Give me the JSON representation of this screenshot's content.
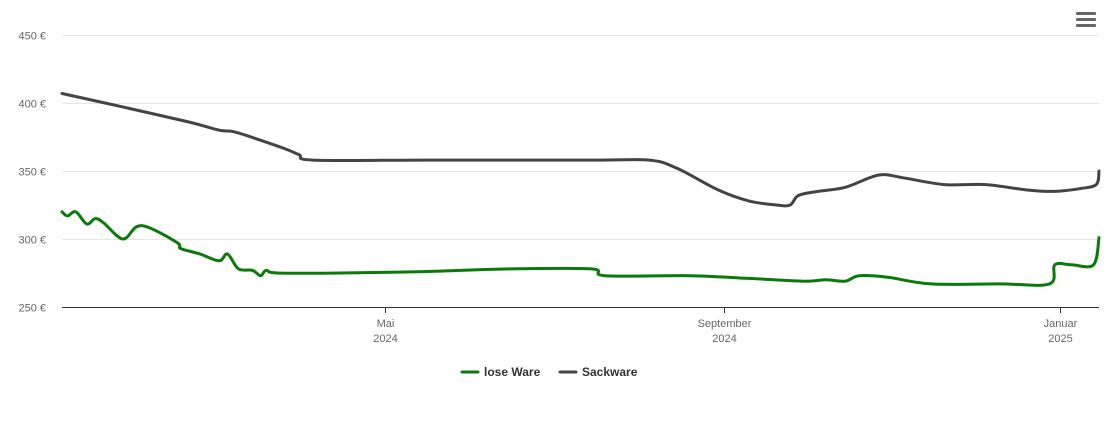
{
  "chart_data": {
    "type": "line",
    "title": "",
    "xlabel": "",
    "ylabel": "",
    "x_range": [
      "2024-01-05",
      "2025-01-15"
    ],
    "ylim": [
      250,
      450
    ],
    "y_ticks": [
      250,
      300,
      350,
      400,
      450
    ],
    "y_tick_labels": [
      "250 €",
      "300 €",
      "350 €",
      "400 €",
      "450 €"
    ],
    "x_ticks": [
      {
        "date": "2024-05-01",
        "month": "Mai",
        "year": "2024"
      },
      {
        "date": "2024-09-01",
        "month": "September",
        "year": "2024"
      },
      {
        "date": "2025-01-01",
        "month": "Januar",
        "year": "2025"
      }
    ],
    "grid": "horizontal",
    "legend_position": "bottom-center",
    "series": [
      {
        "name": "lose Ware",
        "color": "#0b7a0b",
        "points": [
          [
            "2024-01-05",
            320
          ],
          [
            "2024-01-07",
            317
          ],
          [
            "2024-01-10",
            320
          ],
          [
            "2024-01-14",
            311
          ],
          [
            "2024-01-17",
            315
          ],
          [
            "2024-01-20",
            312
          ],
          [
            "2024-01-27",
            300
          ],
          [
            "2024-02-01",
            309
          ],
          [
            "2024-02-06",
            308
          ],
          [
            "2024-02-16",
            297
          ],
          [
            "2024-02-17",
            293
          ],
          [
            "2024-02-24",
            289
          ],
          [
            "2024-03-02",
            284
          ],
          [
            "2024-03-05",
            289
          ],
          [
            "2024-03-09",
            278
          ],
          [
            "2024-03-14",
            277
          ],
          [
            "2024-03-17",
            273
          ],
          [
            "2024-03-19",
            277
          ],
          [
            "2024-03-23",
            275
          ],
          [
            "2024-04-15",
            275
          ],
          [
            "2024-05-15",
            276
          ],
          [
            "2024-06-15",
            278
          ],
          [
            "2024-07-15",
            278
          ],
          [
            "2024-07-20",
            273
          ],
          [
            "2024-08-20",
            273
          ],
          [
            "2024-09-10",
            271
          ],
          [
            "2024-09-30",
            269
          ],
          [
            "2024-10-08",
            270
          ],
          [
            "2024-10-15",
            269
          ],
          [
            "2024-10-20",
            273
          ],
          [
            "2024-10-30",
            272
          ],
          [
            "2024-11-15",
            267
          ],
          [
            "2024-12-10",
            267
          ],
          [
            "2024-12-28",
            267
          ],
          [
            "2024-12-30",
            281
          ],
          [
            "2025-01-05",
            281
          ],
          [
            "2025-01-13",
            281
          ],
          [
            "2025-01-15",
            301
          ]
        ]
      },
      {
        "name": "Sackware",
        "color": "#434348",
        "points": [
          [
            "2024-01-05",
            407
          ],
          [
            "2024-01-25",
            398
          ],
          [
            "2024-02-20",
            386
          ],
          [
            "2024-03-02",
            380
          ],
          [
            "2024-03-07",
            379
          ],
          [
            "2024-03-15",
            374
          ],
          [
            "2024-03-25",
            367
          ],
          [
            "2024-03-31",
            362
          ],
          [
            "2024-04-05",
            358
          ],
          [
            "2024-05-15",
            358
          ],
          [
            "2024-07-15",
            358
          ],
          [
            "2024-08-05",
            358
          ],
          [
            "2024-08-15",
            352
          ],
          [
            "2024-08-30",
            336
          ],
          [
            "2024-09-10",
            328
          ],
          [
            "2024-09-20",
            325
          ],
          [
            "2024-09-25",
            325
          ],
          [
            "2024-09-28",
            332
          ],
          [
            "2024-10-05",
            335
          ],
          [
            "2024-10-15",
            338
          ],
          [
            "2024-10-27",
            347
          ],
          [
            "2024-11-05",
            345
          ],
          [
            "2024-11-20",
            340
          ],
          [
            "2024-12-05",
            340
          ],
          [
            "2024-12-20",
            336
          ],
          [
            "2024-12-30",
            335
          ],
          [
            "2025-01-08",
            337
          ],
          [
            "2025-01-14",
            340
          ],
          [
            "2025-01-15",
            350
          ]
        ]
      }
    ]
  }
}
